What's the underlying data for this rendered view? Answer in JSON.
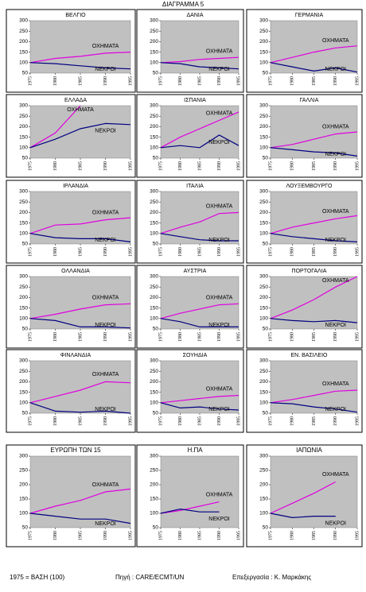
{
  "title": "ΔΙΑΓΡΑΜΜΑ 5",
  "footer": [
    "1975 = ΒΑΣΗ (100)",
    "Πηγή : CARE/ECMT/UN",
    "Επεξεργασία : Κ. Μαρκάκης"
  ],
  "chart_data": [
    {
      "type": "line",
      "title": "ΒΕΛΓΙΟ",
      "x": [
        1975,
        1980,
        1985,
        1990,
        1995
      ],
      "xlim": [
        1975,
        1995
      ],
      "xticks": [
        1975,
        1980,
        1985,
        1990,
        1995
      ],
      "ylim": [
        50,
        300
      ],
      "yticks": [
        50,
        100,
        150,
        200,
        250,
        300
      ],
      "grid": false,
      "series": [
        {
          "name": "ΟΧΗΜΑΤΑ",
          "color": "#e000e0",
          "values": [
            100,
            120,
            130,
            145,
            150
          ]
        },
        {
          "name": "ΝΕΚΡΟΙ",
          "color": "#000080",
          "values": [
            100,
            95,
            85,
            75,
            70
          ]
        }
      ]
    },
    {
      "type": "line",
      "title": "ΔΑΝΙΑ",
      "x": [
        1975,
        1980,
        1985,
        1990,
        1995
      ],
      "xlim": [
        1975,
        1995
      ],
      "xticks": [
        1975,
        1980,
        1985,
        1990,
        1995
      ],
      "ylim": [
        50,
        300
      ],
      "yticks": [
        50,
        100,
        150,
        200,
        250,
        300
      ],
      "grid": false,
      "series": [
        {
          "name": "ΟΧΗΜΑΤΑ",
          "color": "#e000e0",
          "values": [
            100,
            105,
            115,
            120,
            125
          ]
        },
        {
          "name": "ΝΕΚΡΟΙ",
          "color": "#000080",
          "values": [
            100,
            95,
            80,
            75,
            70
          ]
        }
      ]
    },
    {
      "type": "line",
      "title": "ΓΕΡΜΑΝΙΑ",
      "x": [
        1975,
        1980,
        1985,
        1990,
        1995
      ],
      "xlim": [
        1975,
        1995
      ],
      "xticks": [
        1975,
        1980,
        1985,
        1990,
        1995
      ],
      "ylim": [
        50,
        300
      ],
      "yticks": [
        50,
        100,
        150,
        200,
        250,
        300
      ],
      "grid": false,
      "series": [
        {
          "name": "ΟΧΗΜΑΤΑ",
          "color": "#e000e0",
          "values": [
            100,
            125,
            150,
            170,
            180
          ]
        },
        {
          "name": "ΝΕΚΡΟΙ",
          "color": "#000080",
          "values": [
            100,
            80,
            60,
            75,
            55
          ]
        }
      ]
    },
    {
      "type": "line",
      "title": "ΕΛΛΑΔΑ",
      "x": [
        1975,
        1980,
        1985,
        1990,
        1995
      ],
      "xlim": [
        1975,
        1995
      ],
      "xticks": [
        1975,
        1980,
        1985,
        1990,
        1995
      ],
      "ylim": [
        50,
        300
      ],
      "yticks": [
        50,
        100,
        150,
        200,
        250,
        300
      ],
      "grid": false,
      "series": [
        {
          "name": "ΟΧΗΜΑΤΑ",
          "color": "#e000e0",
          "values": [
            100,
            170,
            300,
            null,
            null
          ]
        },
        {
          "name": "ΝΕΚΡΟΙ",
          "color": "#000080",
          "values": [
            100,
            140,
            190,
            215,
            210
          ]
        }
      ]
    },
    {
      "type": "line",
      "title": "ΙΣΠΑΝΙΑ",
      "x": [
        1975,
        1980,
        1985,
        1990,
        1995
      ],
      "xlim": [
        1975,
        1995
      ],
      "xticks": [
        1975,
        1980,
        1985,
        1990,
        1995
      ],
      "ylim": [
        50,
        300
      ],
      "yticks": [
        50,
        100,
        150,
        200,
        250,
        300
      ],
      "grid": false,
      "series": [
        {
          "name": "ΟΧΗΜΑΤΑ",
          "color": "#e000e0",
          "values": [
            100,
            150,
            190,
            230,
            270
          ]
        },
        {
          "name": "ΝΕΚΡΟΙ",
          "color": "#000080",
          "values": [
            100,
            110,
            100,
            160,
            110
          ]
        }
      ]
    },
    {
      "type": "line",
      "title": "ΓΑΛΛΙΑ",
      "x": [
        1975,
        1980,
        1985,
        1990,
        1995
      ],
      "xlim": [
        1975,
        1995
      ],
      "xticks": [
        1975,
        1980,
        1985,
        1990,
        1995
      ],
      "ylim": [
        50,
        300
      ],
      "yticks": [
        50,
        100,
        150,
        200,
        250,
        300
      ],
      "grid": false,
      "series": [
        {
          "name": "ΟΧΗΜΑΤΑ",
          "color": "#e000e0",
          "values": [
            100,
            115,
            140,
            165,
            175
          ]
        },
        {
          "name": "ΝΕΚΡΟΙ",
          "color": "#000080",
          "values": [
            100,
            90,
            80,
            75,
            60
          ]
        }
      ]
    },
    {
      "type": "line",
      "title": "ΙΡΛΑΝΔΙΑ",
      "x": [
        1975,
        1980,
        1985,
        1990,
        1995
      ],
      "xlim": [
        1975,
        1995
      ],
      "xticks": [
        1975,
        1980,
        1985,
        1990,
        1995
      ],
      "ylim": [
        50,
        300
      ],
      "yticks": [
        50,
        100,
        150,
        200,
        250,
        300
      ],
      "grid": false,
      "series": [
        {
          "name": "ΟΧΗΜΑΤΑ",
          "color": "#e000e0",
          "values": [
            100,
            140,
            145,
            165,
            175
          ]
        },
        {
          "name": "ΝΕΚΡΟΙ",
          "color": "#000080",
          "values": [
            100,
            80,
            75,
            75,
            60
          ]
        }
      ]
    },
    {
      "type": "line",
      "title": "ΙΤΑΛΙΑ",
      "x": [
        1975,
        1980,
        1985,
        1990,
        1995
      ],
      "xlim": [
        1975,
        1995
      ],
      "xticks": [
        1975,
        1980,
        1985,
        1990,
        1995
      ],
      "ylim": [
        50,
        300
      ],
      "yticks": [
        50,
        100,
        150,
        200,
        250,
        300
      ],
      "grid": false,
      "series": [
        {
          "name": "ΟΧΗΜΑΤΑ",
          "color": "#e000e0",
          "values": [
            100,
            130,
            155,
            195,
            200
          ]
        },
        {
          "name": "ΝΕΚΡΟΙ",
          "color": "#000080",
          "values": [
            100,
            85,
            70,
            65,
            65
          ]
        }
      ]
    },
    {
      "type": "line",
      "title": "ΛΟΥΞΕΜΒΟΥΡΓΟ",
      "x": [
        1975,
        1980,
        1985,
        1990,
        1995
      ],
      "xlim": [
        1975,
        1995
      ],
      "xticks": [
        1975,
        1980,
        1985,
        1990,
        1995
      ],
      "ylim": [
        50,
        300
      ],
      "yticks": [
        50,
        100,
        150,
        200,
        250,
        300
      ],
      "grid": false,
      "series": [
        {
          "name": "ΟΧΗΜΑΤΑ",
          "color": "#e000e0",
          "values": [
            100,
            130,
            150,
            170,
            185
          ]
        },
        {
          "name": "ΝΕΚΡΟΙ",
          "color": "#000080",
          "values": [
            100,
            85,
            75,
            65,
            60
          ]
        }
      ]
    },
    {
      "type": "line",
      "title": "ΟΛΛΑΝΔΙΑ",
      "x": [
        1975,
        1980,
        1985,
        1990,
        1995
      ],
      "xlim": [
        1975,
        1995
      ],
      "xticks": [
        1975,
        1980,
        1985,
        1990,
        1995
      ],
      "ylim": [
        50,
        300
      ],
      "yticks": [
        50,
        100,
        150,
        200,
        250,
        300
      ],
      "grid": false,
      "series": [
        {
          "name": "ΟΧΗΜΑΤΑ",
          "color": "#e000e0",
          "values": [
            100,
            120,
            145,
            165,
            170
          ]
        },
        {
          "name": "ΝΕΚΡΟΙ",
          "color": "#000080",
          "values": [
            100,
            90,
            60,
            60,
            55
          ]
        }
      ]
    },
    {
      "type": "line",
      "title": "ΑΥΣΤΡΙΑ",
      "x": [
        1975,
        1980,
        1985,
        1990,
        1995
      ],
      "xlim": [
        1975,
        1995
      ],
      "xticks": [
        1975,
        1980,
        1985,
        1990,
        1995
      ],
      "ylim": [
        50,
        300
      ],
      "yticks": [
        50,
        100,
        150,
        200,
        250,
        300
      ],
      "grid": false,
      "series": [
        {
          "name": "ΟΧΗΜΑΤΑ",
          "color": "#e000e0",
          "values": [
            100,
            125,
            145,
            165,
            170
          ]
        },
        {
          "name": "ΝΕΚΡΟΙ",
          "color": "#000080",
          "values": [
            100,
            85,
            60,
            60,
            60
          ]
        }
      ]
    },
    {
      "type": "line",
      "title": "ΠΟΡΤΟΓΑΛΙΑ",
      "x": [
        1975,
        1980,
        1985,
        1990,
        1995
      ],
      "xlim": [
        1975,
        1995
      ],
      "xticks": [
        1975,
        1980,
        1985,
        1990,
        1995
      ],
      "ylim": [
        50,
        300
      ],
      "yticks": [
        50,
        100,
        150,
        200,
        250,
        300
      ],
      "grid": false,
      "series": [
        {
          "name": "ΟΧΗΜΑΤΑ",
          "color": "#e000e0",
          "values": [
            100,
            140,
            190,
            250,
            300
          ]
        },
        {
          "name": "ΝΕΚΡΟΙ",
          "color": "#000080",
          "values": [
            100,
            90,
            85,
            90,
            80
          ]
        }
      ]
    },
    {
      "type": "line",
      "title": "ΦΙΝΛΑΝΔΙΑ",
      "x": [
        1975,
        1980,
        1985,
        1990,
        1995
      ],
      "xlim": [
        1975,
        1995
      ],
      "xticks": [
        1975,
        1980,
        1985,
        1990,
        1995
      ],
      "ylim": [
        50,
        300
      ],
      "yticks": [
        50,
        100,
        150,
        200,
        250,
        300
      ],
      "grid": false,
      "series": [
        {
          "name": "ΟΧΗΜΑΤΑ",
          "color": "#e000e0",
          "values": [
            100,
            130,
            160,
            200,
            195
          ]
        },
        {
          "name": "ΝΕΚΡΟΙ",
          "color": "#000080",
          "values": [
            100,
            60,
            55,
            60,
            50
          ]
        }
      ]
    },
    {
      "type": "line",
      "title": "ΣΟΥΗΔΙΑ",
      "x": [
        1975,
        1980,
        1985,
        1990,
        1995
      ],
      "xlim": [
        1975,
        1995
      ],
      "xticks": [
        1975,
        1980,
        1985,
        1990,
        1995
      ],
      "ylim": [
        50,
        300
      ],
      "yticks": [
        50,
        100,
        150,
        200,
        250,
        300
      ],
      "grid": false,
      "series": [
        {
          "name": "ΟΧΗΜΑΤΑ",
          "color": "#e000e0",
          "values": [
            100,
            110,
            120,
            130,
            135
          ]
        },
        {
          "name": "ΝΕΚΡΟΙ",
          "color": "#000080",
          "values": [
            100,
            75,
            80,
            70,
            65
          ]
        }
      ]
    },
    {
      "type": "line",
      "title": "ΕΝ. ΒΑΣΙΛΕΙΟ",
      "x": [
        1975,
        1980,
        1985,
        1990,
        1995
      ],
      "xlim": [
        1975,
        1995
      ],
      "xticks": [
        1975,
        1980,
        1985,
        1990,
        1995
      ],
      "ylim": [
        50,
        300
      ],
      "yticks": [
        50,
        100,
        150,
        200,
        250,
        300
      ],
      "grid": false,
      "series": [
        {
          "name": "ΟΧΗΜΑΤΑ",
          "color": "#e000e0",
          "values": [
            100,
            115,
            135,
            155,
            160
          ]
        },
        {
          "name": "ΝΕΚΡΟΙ",
          "color": "#000080",
          "values": [
            100,
            95,
            80,
            70,
            55
          ]
        }
      ]
    },
    {
      "type": "line",
      "title": "ΕΥΡΩΠΗ ΤΩΝ 15",
      "x": [
        1975,
        1980,
        1985,
        1990,
        1995
      ],
      "xlim": [
        1975,
        1995
      ],
      "xticks": [
        1975,
        1980,
        1985,
        1990,
        1995
      ],
      "ylim": [
        50,
        300
      ],
      "yticks": [
        50,
        100,
        150,
        200,
        250,
        300
      ],
      "grid": false,
      "series": [
        {
          "name": "ΟΧΗΜΑΤΑ",
          "color": "#e000e0",
          "values": [
            100,
            125,
            145,
            175,
            185
          ]
        },
        {
          "name": "ΝΕΚΡΟΙ",
          "color": "#000080",
          "values": [
            100,
            90,
            80,
            80,
            65
          ]
        }
      ]
    },
    {
      "type": "line",
      "title": "Η.ΠΑ",
      "x": [
        1975,
        1980,
        1985,
        1990,
        1995
      ],
      "xlim": [
        1975,
        1995
      ],
      "xticks": [
        1975,
        1980,
        1985,
        1990,
        1995
      ],
      "ylim": [
        50,
        300
      ],
      "yticks": [
        50,
        100,
        150,
        200,
        250,
        300
      ],
      "grid": false,
      "series": [
        {
          "name": "ΟΧΗΜΑΤΑ",
          "color": "#e000e0",
          "values": [
            100,
            110,
            125,
            140,
            null
          ]
        },
        {
          "name": "ΝΕΚΡΟΙ",
          "color": "#000080",
          "values": [
            100,
            115,
            105,
            105,
            null
          ]
        }
      ]
    },
    {
      "type": "line",
      "title": "ΙΑΠΩΝΙΑ",
      "x": [
        1975,
        1980,
        1985,
        1990,
        1995
      ],
      "xlim": [
        1975,
        1995
      ],
      "xticks": [
        1975,
        1980,
        1985,
        1990,
        1995
      ],
      "ylim": [
        50,
        300
      ],
      "yticks": [
        50,
        100,
        150,
        200,
        250,
        300
      ],
      "grid": false,
      "series": [
        {
          "name": "ΟΧΗΜΑΤΑ",
          "color": "#e000e0",
          "values": [
            100,
            135,
            170,
            210,
            null
          ]
        },
        {
          "name": "ΝΕΚΡΟΙ",
          "color": "#000080",
          "values": [
            100,
            85,
            90,
            90,
            null
          ]
        }
      ]
    }
  ]
}
